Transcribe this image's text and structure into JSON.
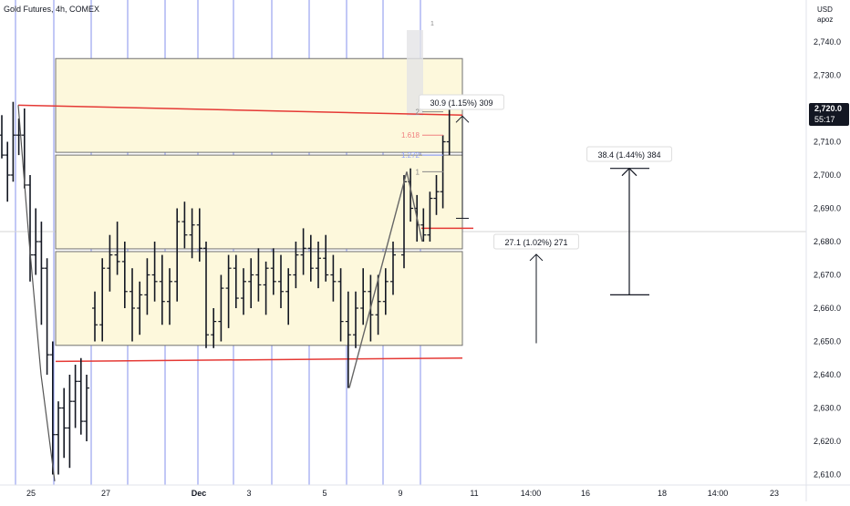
{
  "header": {
    "symbol": "Gold Futures, 4h, COMEX"
  },
  "price_scale": {
    "currency": "USD",
    "unit": "apoz"
  },
  "colors": {
    "bar": "#131722",
    "grid_blue": "#5b6ee8",
    "support_red": "#e53935",
    "zone_fill": "#fdf8dc",
    "zone_border": "#707070",
    "fib_1618": "#f08080",
    "fib_1272": "#8c9eff",
    "current_price_bg": "#131722"
  },
  "chart_data": {
    "type": "candlestick",
    "title": "Gold Futures, 4h, COMEX",
    "ylim": [
      2607,
      2760
    ],
    "y_ticks": [
      2610,
      2620,
      2630,
      2640,
      2650,
      2660,
      2670,
      2680,
      2690,
      2700,
      2710,
      2720,
      2730,
      2740
    ],
    "y_tick_labels": [
      "2,610.0",
      "2,620.0",
      "2,630.0",
      "2,640.0",
      "2,650.0",
      "2,660.0",
      "2,670.0",
      "2,680.0",
      "2,690.0",
      "2,700.0",
      "2,710.0",
      "2,720.0",
      "2,730.0",
      "2,740.0"
    ],
    "x_axis_labels": [
      "25",
      "27",
      "Dec",
      "3",
      "5",
      "9",
      "11",
      "14:00",
      "16",
      "18",
      "14:00",
      "23"
    ],
    "current_price": {
      "value": 2720.0,
      "label": "2,720.0",
      "countdown": "55:17"
    },
    "bars": [
      [
        2712,
        2718,
        2705,
        2706
      ],
      [
        2706,
        2710,
        2692,
        2700
      ],
      [
        2700,
        2722,
        2698,
        2712
      ],
      [
        2712,
        2717,
        2706,
        2712
      ],
      [
        2712,
        2720,
        2696,
        2697
      ],
      [
        2697,
        2700,
        2668,
        2676
      ],
      [
        2676,
        2690,
        2670,
        2680
      ],
      [
        2680,
        2686,
        2655,
        2672
      ],
      [
        2672,
        2675,
        2640,
        2646
      ],
      [
        2646,
        2650,
        2610,
        2622
      ],
      [
        2622,
        2632,
        2610,
        2630
      ],
      [
        2630,
        2636,
        2615,
        2624
      ],
      [
        2624,
        2640,
        2612,
        2632
      ],
      [
        2632,
        2643,
        2624,
        2638
      ],
      [
        2638,
        2645,
        2622,
        2626
      ],
      [
        2626,
        2640,
        2620,
        2636
      ],
      [
        2660,
        2665,
        2650,
        2655
      ],
      [
        2655,
        2675,
        2650,
        2672
      ],
      [
        2672,
        2682,
        2665,
        2676
      ],
      [
        2676,
        2686,
        2670,
        2674
      ],
      [
        2674,
        2680,
        2660,
        2665
      ],
      [
        2665,
        2672,
        2650,
        2660
      ],
      [
        2660,
        2668,
        2652,
        2664
      ],
      [
        2664,
        2675,
        2658,
        2670
      ],
      [
        2670,
        2680,
        2662,
        2668
      ],
      [
        2668,
        2676,
        2655,
        2662
      ],
      [
        2662,
        2672,
        2655,
        2668
      ],
      [
        2668,
        2690,
        2662,
        2686
      ],
      [
        2686,
        2692,
        2678,
        2682
      ],
      [
        2682,
        2690,
        2675,
        2685
      ],
      [
        2685,
        2690,
        2674,
        2678
      ],
      [
        2678,
        2680,
        2648,
        2652
      ],
      [
        2652,
        2660,
        2648,
        2656
      ],
      [
        2656,
        2670,
        2650,
        2666
      ],
      [
        2666,
        2676,
        2654,
        2672
      ],
      [
        2672,
        2676,
        2660,
        2663
      ],
      [
        2663,
        2672,
        2658,
        2668
      ],
      [
        2668,
        2675,
        2660,
        2670
      ],
      [
        2670,
        2678,
        2662,
        2667
      ],
      [
        2667,
        2674,
        2658,
        2672
      ],
      [
        2672,
        2678,
        2664,
        2668
      ],
      [
        2668,
        2676,
        2660,
        2665
      ],
      [
        2665,
        2672,
        2655,
        2670
      ],
      [
        2670,
        2680,
        2666,
        2676
      ],
      [
        2676,
        2684,
        2670,
        2678
      ],
      [
        2678,
        2682,
        2668,
        2672
      ],
      [
        2672,
        2680,
        2666,
        2675
      ],
      [
        2675,
        2682,
        2668,
        2670
      ],
      [
        2670,
        2676,
        2662,
        2668
      ],
      [
        2668,
        2672,
        2650,
        2656
      ],
      [
        2656,
        2665,
        2636,
        2652
      ],
      [
        2652,
        2665,
        2648,
        2660
      ],
      [
        2660,
        2672,
        2655,
        2665
      ],
      [
        2665,
        2670,
        2650,
        2658
      ],
      [
        2658,
        2670,
        2652,
        2662
      ],
      [
        2662,
        2672,
        2658,
        2668
      ],
      [
        2668,
        2680,
        2664,
        2676
      ],
      [
        2676,
        2700,
        2672,
        2698
      ],
      [
        2698,
        2702,
        2686,
        2690
      ],
      [
        2690,
        2694,
        2680,
        2685
      ],
      [
        2685,
        2690,
        2680,
        2682
      ],
      [
        2682,
        2695,
        2680,
        2693
      ],
      [
        2693,
        2700,
        2688,
        2695
      ],
      [
        2695,
        2712,
        2690,
        2710
      ],
      [
        2710,
        2722,
        2706,
        2720
      ]
    ]
  },
  "drawings": {
    "support_lines": [
      {
        "from": 2721,
        "to": 2718
      },
      {
        "from": 2644,
        "to": 2645
      },
      {
        "value": 2684
      }
    ],
    "zones": [
      {
        "top": 2735,
        "bottom": 2706
      },
      {
        "top": 2706,
        "bottom": 2677
      },
      {
        "top": 2677,
        "bottom": 2648
      }
    ],
    "fib_levels": [
      {
        "label": "2",
        "value": 2719
      },
      {
        "label": "1.618",
        "value": 2712
      },
      {
        "label": "1.272",
        "value": 2706
      },
      {
        "label": "1",
        "value": 2701
      }
    ],
    "zigzag": [
      2636,
      2701,
      2680
    ],
    "measures": [
      {
        "label": "30.9 (1.15%) 309",
        "from": 2687,
        "to": 2718
      },
      {
        "label": "27.1 (1.02%) 271",
        "from": 2650,
        "to": 2677
      },
      {
        "label": "38.4 (1.44%) 384",
        "from": 2664,
        "to": 2702
      }
    ],
    "top_marker": "1"
  }
}
